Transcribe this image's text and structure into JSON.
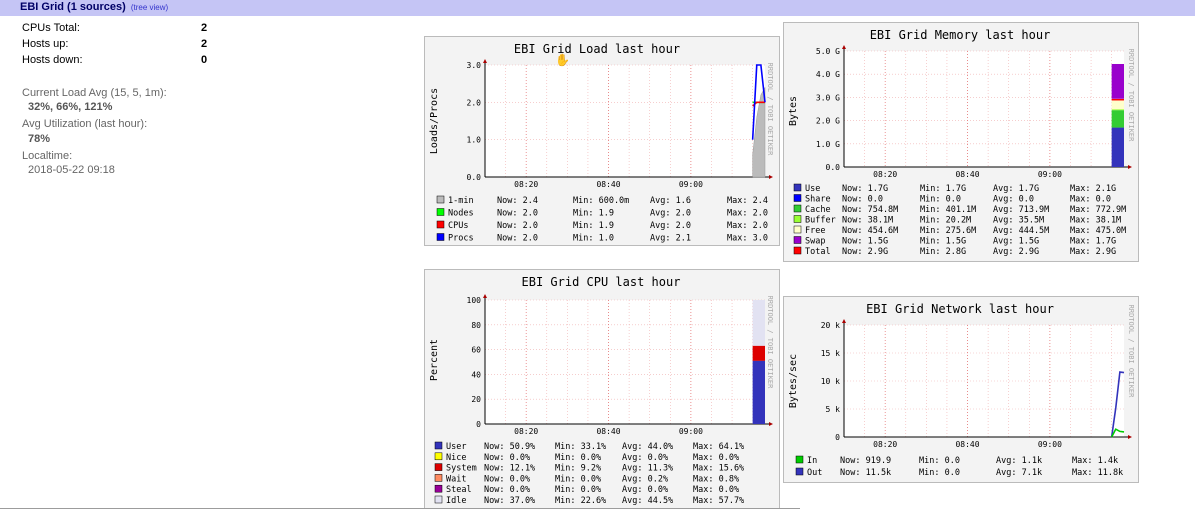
{
  "header": {
    "title": "EBI Grid (1 sources)",
    "tree_link": "(tree view)"
  },
  "summary": {
    "cpus_label": "CPUs Total:",
    "cpus_value": "2",
    "hosts_up_label": "Hosts up:",
    "hosts_up_value": "2",
    "hosts_down_label": "Hosts down:",
    "hosts_down_value": "0",
    "load_label": "Current Load Avg (15, 5, 1m):",
    "load_value": "32%, 66%, 121%",
    "util_label": "Avg Utilization (last hour):",
    "util_value": "78%",
    "time_label": "Localtime:",
    "time_value": "2018-05-22 09:18"
  },
  "watermark": "RRDTOOL / TOBI OETIKER",
  "chart_data": [
    {
      "type": "area",
      "title": "EBI Grid Load last hour",
      "ylabel": "Loads/Procs",
      "x_ticks": [
        "08:20",
        "08:40",
        "09:00"
      ],
      "y_ticks": [
        "0.0",
        "1.0",
        "2.0",
        "3.0"
      ],
      "ylim": [
        0,
        3
      ],
      "series": [
        {
          "name": "1-min",
          "color": "#bbbbbb",
          "fill": true,
          "x": [
            "09:15",
            "09:16",
            "09:17",
            "09:18"
          ],
          "values": [
            0.6,
            1.6,
            2.2,
            2.4
          ]
        },
        {
          "name": "Nodes",
          "color": "#00ff00",
          "x": [
            "09:15",
            "09:16",
            "09:17",
            "09:18"
          ],
          "values": [
            2.0,
            2.0,
            2.0,
            2.0
          ]
        },
        {
          "name": "CPUs",
          "color": "#ff0000",
          "x": [
            "09:15",
            "09:16",
            "09:17",
            "09:18"
          ],
          "values": [
            1.9,
            2.0,
            2.0,
            2.0
          ]
        },
        {
          "name": "Procs",
          "color": "#0000ff",
          "x": [
            "09:15",
            "09:16",
            "09:17",
            "09:18"
          ],
          "values": [
            1.0,
            3.0,
            3.0,
            2.0
          ]
        }
      ],
      "legend": [
        {
          "color": "#bbbbbb",
          "name": "1-min",
          "now": "2.4",
          "min": "600.0m",
          "avg": "1.6",
          "max": "2.4"
        },
        {
          "color": "#00ff00",
          "name": "Nodes",
          "now": "2.0",
          "min": "1.9",
          "avg": "2.0",
          "max": "2.0"
        },
        {
          "color": "#ff0000",
          "name": "CPUs",
          "now": "2.0",
          "min": "1.9",
          "avg": "2.0",
          "max": "2.0"
        },
        {
          "color": "#0000ff",
          "name": "Procs",
          "now": "2.0",
          "min": "1.0",
          "avg": "2.1",
          "max": "3.0"
        }
      ]
    },
    {
      "type": "area",
      "title": "EBI Grid Memory last hour",
      "ylabel": "Bytes",
      "x_ticks": [
        "08:20",
        "08:40",
        "09:00"
      ],
      "y_ticks": [
        "0.0",
        "1.0 G",
        "2.0 G",
        "3.0 G",
        "4.0 G",
        "5.0 G"
      ],
      "ylim": [
        0,
        5
      ],
      "stack": [
        {
          "name": "Use",
          "color": "#3333bb",
          "value": 1.7
        },
        {
          "name": "Share",
          "color": "#0000ff",
          "value": 0.0
        },
        {
          "name": "Cache",
          "color": "#33cc33",
          "value": 0.75
        },
        {
          "name": "Buffer",
          "color": "#99ff33",
          "value": 0.04
        },
        {
          "name": "Free",
          "color": "#ffffcc",
          "value": 0.45
        },
        {
          "name": "Swap",
          "color": "#9900cc",
          "value": 1.5
        }
      ],
      "legend": [
        {
          "color": "#3333bb",
          "name": "Use",
          "now": "1.7G",
          "min": "1.7G",
          "avg": "1.7G",
          "max": "2.1G"
        },
        {
          "color": "#0000ff",
          "name": "Share",
          "now": "0.0",
          "min": "0.0",
          "avg": "0.0",
          "max": "0.0"
        },
        {
          "color": "#33cc33",
          "name": "Cache",
          "now": "754.8M",
          "min": "401.1M",
          "avg": "713.9M",
          "max": "772.9M"
        },
        {
          "color": "#99ff33",
          "name": "Buffer",
          "now": "38.1M",
          "min": "20.2M",
          "avg": "35.5M",
          "max": "38.1M"
        },
        {
          "color": "#ffffcc",
          "name": "Free",
          "now": "454.6M",
          "min": "275.6M",
          "avg": "444.5M",
          "max": "475.0M"
        },
        {
          "color": "#9900cc",
          "name": "Swap",
          "now": "1.5G",
          "min": "1.5G",
          "avg": "1.5G",
          "max": "1.7G"
        },
        {
          "color": "#ff0000",
          "name": "Total",
          "now": "2.9G",
          "min": "2.8G",
          "avg": "2.9G",
          "max": "2.9G"
        }
      ]
    },
    {
      "type": "area",
      "title": "EBI Grid CPU last hour",
      "ylabel": "Percent",
      "x_ticks": [
        "08:20",
        "08:40",
        "09:00"
      ],
      "y_ticks": [
        "0",
        "20",
        "40",
        "60",
        "80",
        "100"
      ],
      "ylim": [
        0,
        100
      ],
      "legend": [
        {
          "color": "#3333bb",
          "name": "User",
          "now": "50.9%",
          "min": "33.1%",
          "avg": "44.0%",
          "max": "64.1%"
        },
        {
          "color": "#ffff00",
          "name": "Nice",
          "now": "0.0%",
          "min": "0.0%",
          "avg": "0.0%",
          "max": "0.0%"
        },
        {
          "color": "#dd0000",
          "name": "System",
          "now": "12.1%",
          "min": "9.2%",
          "avg": "11.3%",
          "max": "15.6%"
        },
        {
          "color": "#ff8a60",
          "name": "Wait",
          "now": "0.0%",
          "min": "0.0%",
          "avg": "0.2%",
          "max": "0.8%"
        },
        {
          "color": "#990099",
          "name": "Steal",
          "now": "0.0%",
          "min": "0.0%",
          "avg": "0.0%",
          "max": "0.0%"
        },
        {
          "color": "#e2e2f2",
          "name": "Idle",
          "now": "37.0%",
          "min": "22.6%",
          "avg": "44.5%",
          "max": "57.7%"
        }
      ]
    },
    {
      "type": "line",
      "title": "EBI Grid Network last hour",
      "ylabel": "Bytes/sec",
      "x_ticks": [
        "08:20",
        "08:40",
        "09:00"
      ],
      "y_ticks": [
        "0",
        "5 k",
        "10 k",
        "15 k",
        "20 k"
      ],
      "ylim": [
        0,
        20
      ],
      "legend": [
        {
          "color": "#00cc00",
          "name": "In",
          "now": "919.9",
          "min": "0.0",
          "avg": "1.1k",
          "max": "1.4k"
        },
        {
          "color": "#3333bb",
          "name": "Out",
          "now": "11.5k",
          "min": "0.0",
          "avg": "7.1k",
          "max": "11.8k"
        }
      ]
    }
  ]
}
